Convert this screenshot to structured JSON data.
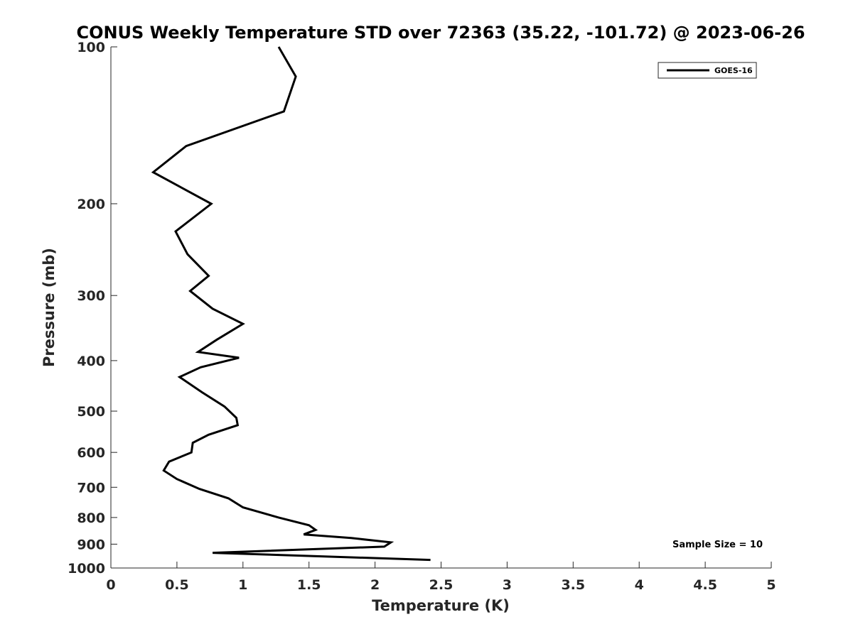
{
  "chart_data": {
    "type": "line",
    "title": "CONUS Weekly Temperature STD over 72363 (35.22, -101.72) @ 2023-06-26",
    "xlabel": "Temperature (K)",
    "ylabel": "Pressure (mb)",
    "xlim": [
      0,
      5
    ],
    "ylim": [
      100,
      1000
    ],
    "y_scale": "log",
    "y_reversed": true,
    "x_ticks": [
      0,
      0.5,
      1,
      1.5,
      2,
      2.5,
      3,
      3.5,
      4,
      4.5,
      5
    ],
    "x_tick_labels": [
      "0",
      "0.5",
      "1",
      "1.5",
      "2",
      "2.5",
      "3",
      "3.5",
      "4",
      "4.5",
      "5"
    ],
    "y_ticks": [
      100,
      200,
      300,
      400,
      500,
      600,
      700,
      800,
      900,
      1000
    ],
    "y_tick_labels": [
      "100",
      "200",
      "300",
      "400",
      "500",
      "600",
      "700",
      "800",
      "900",
      "1000"
    ],
    "grid": false,
    "legend_position": "top-right",
    "series": [
      {
        "name": "GOES-16",
        "color": "#000000",
        "x": [
          1.27,
          1.4,
          1.31,
          0.57,
          0.32,
          0.76,
          0.49,
          0.58,
          0.74,
          0.6,
          0.77,
          1.0,
          0.8,
          0.66,
          0.97,
          0.68,
          0.52,
          0.69,
          0.86,
          0.95,
          0.96,
          0.74,
          0.62,
          0.61,
          0.44,
          0.4,
          0.5,
          0.67,
          0.89,
          1.0,
          1.27,
          1.5,
          1.55,
          1.46,
          1.82,
          2.12,
          2.07,
          0.77,
          2.42
        ],
        "y": [
          100,
          114,
          133,
          155,
          174,
          200,
          226,
          250,
          275,
          294,
          318,
          340,
          365,
          385,
          395,
          412,
          430,
          460,
          490,
          515,
          532,
          555,
          575,
          600,
          625,
          650,
          675,
          705,
          735,
          765,
          800,
          828,
          845,
          862,
          876,
          893,
          910,
          935,
          965
        ]
      }
    ],
    "annotations": [
      "Sample Size = 10"
    ]
  }
}
